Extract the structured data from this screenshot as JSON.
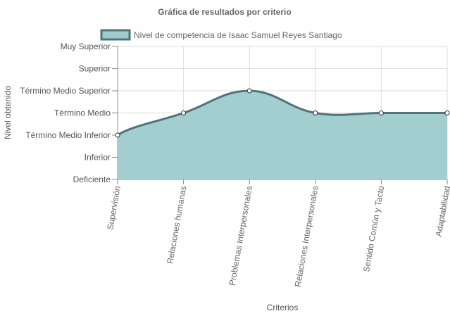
{
  "chart_data": {
    "type": "area",
    "title": "Gráfica de resultados por criterio",
    "xlabel": "Criterios",
    "ylabel": "Nivel obtenido",
    "y_levels": [
      "Deficiente",
      "Inferior",
      "Término Medio Inferior",
      "Término Medio",
      "Término Medio Superior",
      "Superior",
      "Muy Superior"
    ],
    "categories": [
      "Supervisión",
      "Relaciones humanas",
      "Problemas Interpersonales",
      "Relaciones Interpersonales",
      "Sentido Común y Tacto",
      "Adaptabilidad"
    ],
    "series": [
      {
        "name": "Nivel de competencia de Isaac Samuel Reyes Santiago",
        "values": [
          2,
          3,
          4,
          3,
          3,
          3
        ]
      }
    ],
    "ylim": [
      0,
      6
    ],
    "grid": true,
    "legend": "top",
    "colors": {
      "fill": "#9ecbcd",
      "line": "#4f7479",
      "grid": "#dcdcdc",
      "axis": "#888888"
    }
  }
}
